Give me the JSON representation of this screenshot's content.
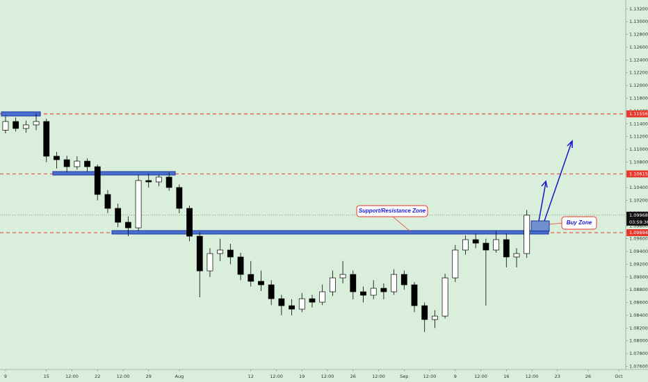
{
  "chart_data": {
    "type": "candlestick",
    "x": [
      0,
      1,
      2,
      3,
      4,
      5,
      6,
      7,
      8,
      9,
      10,
      11,
      12,
      13,
      14,
      15,
      16,
      17,
      18,
      19,
      20,
      21,
      22,
      23,
      24,
      25,
      26,
      27,
      28,
      29,
      30,
      31,
      32,
      33,
      34,
      35,
      36,
      37,
      38,
      39,
      40,
      41,
      42,
      43,
      44,
      45,
      46,
      47,
      48,
      49,
      50,
      51
    ],
    "open": [
      1.113,
      1.11436,
      1.11327,
      1.11382,
      1.11436,
      1.10892,
      1.10837,
      1.10728,
      1.10815,
      1.10728,
      1.10293,
      1.10075,
      1.09857,
      1.0977,
      1.10511,
      1.10489,
      1.10565,
      1.10402,
      1.10075,
      1.09639,
      1.09095,
      1.09367,
      1.09422,
      1.09313,
      1.0904,
      1.08932,
      1.08877,
      1.08659,
      1.0855,
      1.08496,
      1.08659,
      1.08605,
      1.08768,
      1.08986,
      1.0904,
      1.08768,
      1.08714,
      1.08823,
      1.08768,
      1.0904,
      1.08877,
      1.0855,
      1.08333,
      1.08387,
      1.08986,
      1.09422,
      1.09585,
      1.0953,
      1.09422,
      1.09585,
      1.09313,
      1.09367
    ],
    "high": [
      1.1152,
      1.115,
      1.1145,
      1.1156,
      1.1148,
      1.1096,
      1.109,
      1.1089,
      1.1086,
      1.1076,
      1.1036,
      1.1015,
      1.0995,
      1.106,
      1.1062,
      1.106,
      1.1064,
      1.1045,
      1.1012,
      1.097,
      1.0945,
      1.096,
      1.0952,
      1.0938,
      1.0925,
      1.091,
      1.0895,
      1.0872,
      1.0865,
      1.0875,
      1.0872,
      1.0888,
      1.091,
      1.0925,
      1.091,
      1.0885,
      1.0895,
      1.089,
      1.0912,
      1.091,
      1.0892,
      1.086,
      1.0848,
      1.0905,
      1.095,
      1.0965,
      1.0968,
      1.096,
      1.0972,
      1.0968,
      1.0945,
      1.1005
    ],
    "low": [
      1.1125,
      1.1128,
      1.1126,
      1.113,
      1.108,
      1.107,
      1.1064,
      1.1068,
      1.1065,
      1.102,
      1.1,
      1.0978,
      1.09639,
      1.0972,
      1.104,
      1.1042,
      1.1035,
      1.1,
      1.0956,
      1.08681,
      1.09,
      1.0925,
      1.092,
      1.0895,
      1.0885,
      1.0878,
      1.0856,
      1.084,
      1.084,
      1.0845,
      1.0852,
      1.0856,
      1.087,
      1.089,
      1.0865,
      1.086,
      1.0865,
      1.0865,
      1.0872,
      1.088,
      1.0845,
      1.08137,
      1.082,
      1.0835,
      1.0892,
      1.0935,
      1.0945,
      1.0855,
      1.0938,
      1.0915,
      1.0915,
      1.093
    ],
    "close": [
      1.11436,
      1.11327,
      1.11382,
      1.11436,
      1.10892,
      1.10837,
      1.10728,
      1.10815,
      1.10728,
      1.10293,
      1.10075,
      1.09857,
      1.0977,
      1.10511,
      1.10489,
      1.10565,
      1.10402,
      1.10075,
      1.09639,
      1.09095,
      1.09367,
      1.09422,
      1.09313,
      1.0904,
      1.08932,
      1.08877,
      1.08659,
      1.0855,
      1.08496,
      1.08659,
      1.08605,
      1.08768,
      1.08986,
      1.0904,
      1.08768,
      1.08714,
      1.08823,
      1.08768,
      1.0904,
      1.08877,
      1.0855,
      1.08333,
      1.08387,
      1.08986,
      1.09422,
      1.09585,
      1.0953,
      1.09422,
      1.09585,
      1.09313,
      1.09367,
      1.09968
    ],
    "up_color": "#ffffff",
    "down_color": "#000000",
    "xlim": [
      -0.54,
      60.68
    ],
    "xticks": [
      {
        "value": 0,
        "label": "9"
      },
      {
        "value": 4,
        "label": "15"
      },
      {
        "value": 6.5,
        "label": "12:00"
      },
      {
        "value": 9,
        "label": "22"
      },
      {
        "value": 11.5,
        "label": "12:00"
      },
      {
        "value": 14,
        "label": "29"
      },
      {
        "value": 17,
        "label": "Aug"
      },
      {
        "value": 24,
        "label": "12"
      },
      {
        "value": 26.5,
        "label": "12:00"
      },
      {
        "value": 29,
        "label": "19"
      },
      {
        "value": 31.5,
        "label": "12:00"
      },
      {
        "value": 34,
        "label": "26"
      },
      {
        "value": 36.5,
        "label": "12:00"
      },
      {
        "value": 39,
        "label": "Sep"
      },
      {
        "value": 41.5,
        "label": "12:00"
      },
      {
        "value": 44,
        "label": "9"
      },
      {
        "value": 46.5,
        "label": "12:00"
      },
      {
        "value": 49,
        "label": "16"
      },
      {
        "value": 51.5,
        "label": "12:00"
      },
      {
        "value": 54,
        "label": "23"
      },
      {
        "value": 57,
        "label": "26"
      },
      {
        "value": 60,
        "label": "Oct"
      }
    ],
    "ylim": [
      1.0755,
      1.1334
    ],
    "yticks": [
      {
        "value": 1.076,
        "label": "1.07600"
      },
      {
        "value": 1.078,
        "label": "1.07800"
      },
      {
        "value": 1.08,
        "label": "1.08000"
      },
      {
        "value": 1.082,
        "label": "1.08200"
      },
      {
        "value": 1.084,
        "label": "1.08400"
      },
      {
        "value": 1.086,
        "label": "1.08600"
      },
      {
        "value": 1.088,
        "label": "1.08800"
      },
      {
        "value": 1.09,
        "label": "1.09000"
      },
      {
        "value": 1.092,
        "label": "1.09200"
      },
      {
        "value": 1.094,
        "label": "1.09400"
      },
      {
        "value": 1.096,
        "label": "1.09600"
      },
      {
        "value": 1.098,
        "label": "1.09800"
      },
      {
        "value": 1.1,
        "label": "1.10000"
      },
      {
        "value": 1.102,
        "label": "1.10200"
      },
      {
        "value": 1.104,
        "label": "1.10400"
      },
      {
        "value": 1.106,
        "label": "1.10600"
      },
      {
        "value": 1.108,
        "label": "1.10800"
      },
      {
        "value": 1.11,
        "label": "1.11000"
      },
      {
        "value": 1.112,
        "label": "1.11200"
      },
      {
        "value": 1.114,
        "label": "1.11400"
      },
      {
        "value": 1.116,
        "label": "1.11600"
      },
      {
        "value": 1.118,
        "label": "1.11800"
      },
      {
        "value": 1.12,
        "label": "1.12000"
      },
      {
        "value": 1.122,
        "label": "1.12200"
      },
      {
        "value": 1.124,
        "label": "1.12400"
      },
      {
        "value": 1.126,
        "label": "1.12600"
      },
      {
        "value": 1.128,
        "label": "1.12800"
      },
      {
        "value": 1.13,
        "label": "1.13000"
      },
      {
        "value": 1.132,
        "label": "1.13200"
      }
    ],
    "levels": [
      1.11556,
      1.10615,
      1.09694
    ],
    "level_color": "#e8372c",
    "countdown": "03:59:36",
    "annotations": [
      "Support/Resistance Zone",
      "Buy Zone"
    ]
  }
}
